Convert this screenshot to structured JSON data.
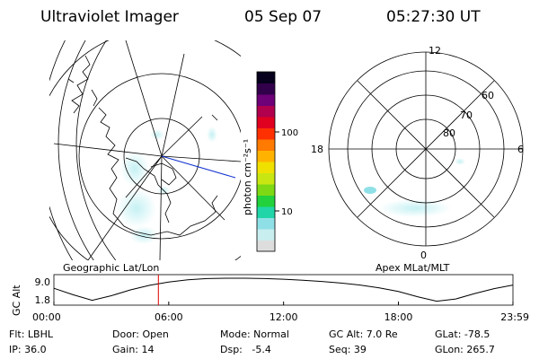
{
  "header": {
    "instrument": "Ultraviolet Imager",
    "date": "05 Sep 07",
    "time": "05:27:30 UT"
  },
  "geo_panel": {
    "label": "Geographic Lat/Lon"
  },
  "apex_panel": {
    "label": "Apex MLat/MLT",
    "mlt_labels": [
      "12",
      "18",
      "6",
      "0"
    ],
    "lat_labels": [
      "60",
      "70",
      "80"
    ]
  },
  "colorbar": {
    "unit_label": "photon cm⁻²s⁻¹",
    "scale": "log",
    "ticks": [
      "10",
      "100"
    ],
    "colors": [
      "#dddddd",
      "#c8eef0",
      "#8fe0e6",
      "#20d6a8",
      "#22d13c",
      "#7ed914",
      "#c8e612",
      "#f0e000",
      "#ffb300",
      "#ff7a00",
      "#ff3000",
      "#e00020",
      "#b0004e",
      "#6e0078",
      "#32004a",
      "#06001c"
    ]
  },
  "chart_data": {
    "type": "line",
    "ylabel": "GC Alt",
    "yticks": [
      "9.0",
      "1.8"
    ],
    "ylim": [
      1.8,
      9.0
    ],
    "xlim": [
      0,
      1439
    ],
    "xticks": [
      "00:00",
      "06:00",
      "12:00",
      "18:00",
      "23:59"
    ],
    "marker_time": 327.5,
    "series": [
      {
        "x": [
          0,
          60,
          120,
          180,
          240,
          300,
          360,
          420,
          480,
          540,
          600,
          660,
          720,
          780,
          840,
          900,
          960,
          1020,
          1080,
          1140,
          1200,
          1260,
          1320,
          1380,
          1439
        ],
        "y": [
          5.9,
          3.9,
          2.2,
          3.6,
          5.4,
          6.8,
          7.8,
          8.5,
          8.9,
          9.0,
          9.0,
          8.9,
          8.7,
          8.4,
          8.0,
          7.5,
          6.9,
          6.0,
          4.9,
          3.3,
          1.9,
          2.6,
          4.3,
          5.8,
          6.9
        ]
      }
    ]
  },
  "footer": {
    "row1": [
      "Flt: LBHL",
      "Door: Open",
      "Mode: Normal",
      "GC Alt: 7.0 Re",
      "GLat: -78.5"
    ],
    "row2": [
      "IP: 36.0",
      "Gain: 14",
      "Dsp:   -5.4",
      "Seq: 39",
      "GLon: 265.7"
    ]
  }
}
